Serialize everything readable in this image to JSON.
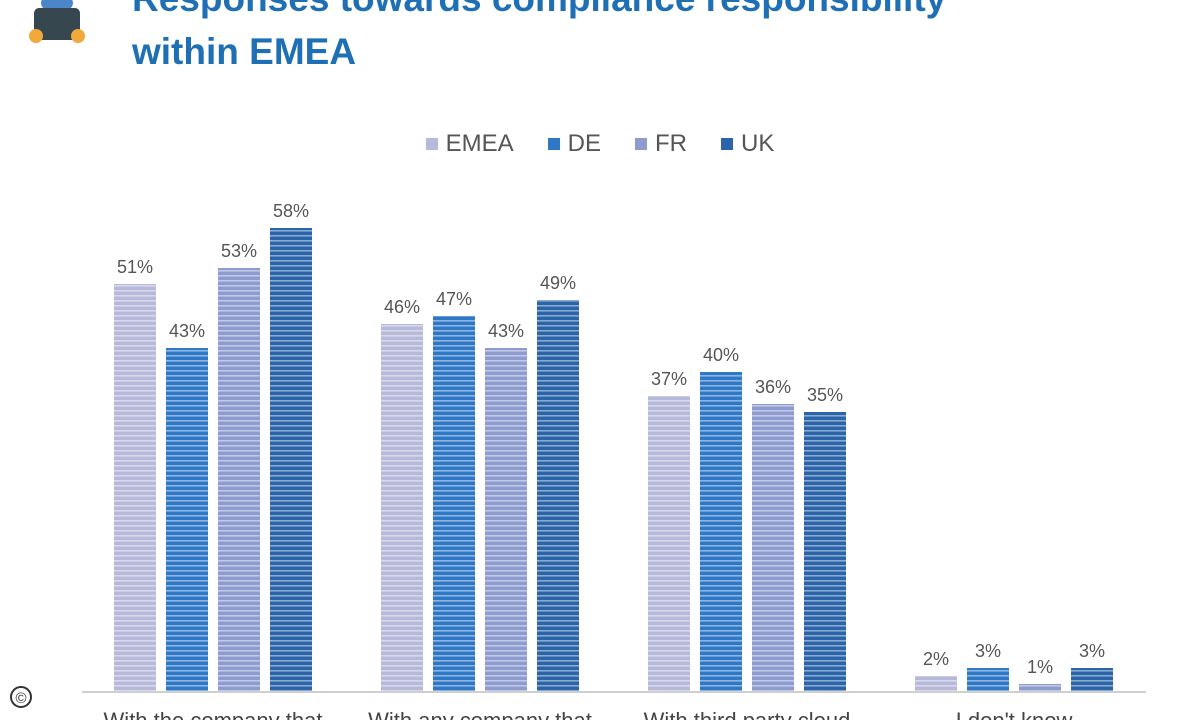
{
  "header": {
    "title_line1": "Responses towards compliance responsibility",
    "title_line2": "within EMEA",
    "logo_icon": "laptop-icon"
  },
  "colors": {
    "EMEA": "#b6b9d9",
    "DE": "#2f78c6",
    "FR": "#8d9bcf",
    "UK": "#2b64a9",
    "title": "#1f6fb5"
  },
  "footer": {
    "copyright_symbol": "©"
  },
  "chart_data": {
    "type": "bar",
    "categories": [
      "With the company that",
      "With any company that",
      "With third party cloud",
      "I don't know"
    ],
    "series": [
      {
        "name": "EMEA",
        "values": [
          51,
          46,
          37,
          2
        ]
      },
      {
        "name": "DE",
        "values": [
          43,
          47,
          40,
          3
        ]
      },
      {
        "name": "FR",
        "values": [
          53,
          43,
          36,
          1
        ]
      },
      {
        "name": "UK",
        "values": [
          58,
          49,
          35,
          3
        ]
      }
    ],
    "value_suffix": "%",
    "ylim": [
      0,
      60
    ],
    "grid": false,
    "legend_position": "top-center"
  }
}
